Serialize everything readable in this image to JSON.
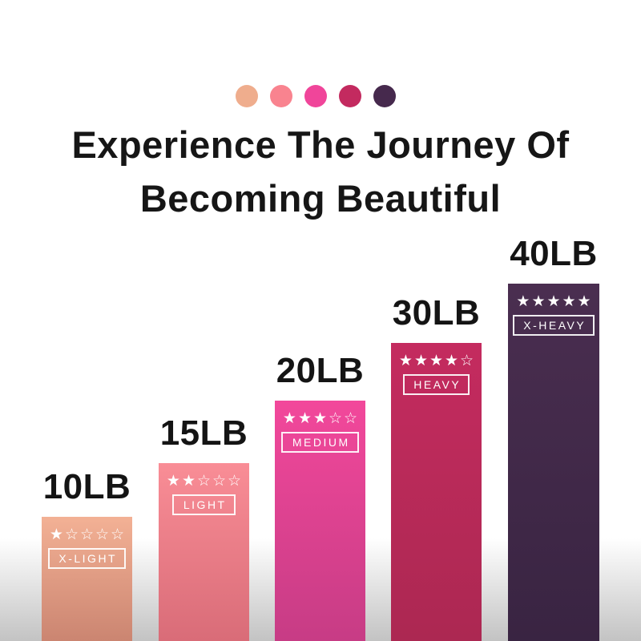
{
  "title": {
    "line1": "Experience The Journey Of",
    "line2": "Becoming Beautiful"
  },
  "chart_data": {
    "type": "bar",
    "title": "Experience The Journey Of Becoming Beautiful",
    "categories": [
      "10LB",
      "15LB",
      "20LB",
      "30LB",
      "40LB"
    ],
    "values": [
      10,
      15,
      20,
      30,
      40
    ],
    "unit": "LB",
    "xlabel": "",
    "ylabel": "",
    "legend": "none",
    "grid": false,
    "palette": [
      "#EFAD8D",
      "#F9838F",
      "#F0459A",
      "#C32A5F",
      "#46294D"
    ],
    "background_fade_color": "#c3c3c3",
    "title_color": "#161616",
    "bars": [
      {
        "weight_label": "10LB",
        "rating": 1,
        "stars": "★☆☆☆☆",
        "band_label": "X-LIGHT",
        "color_top": "#F3B195",
        "color_bottom": "#CB8571"
      },
      {
        "weight_label": "15LB",
        "rating": 2,
        "stars": "★★☆☆☆",
        "band_label": "LIGHT",
        "color_top": "#F98D96",
        "color_bottom": "#D96C78"
      },
      {
        "weight_label": "20LB",
        "rating": 3,
        "stars": "★★★☆☆",
        "band_label": "MEDIUM",
        "color_top": "#F2489B",
        "color_bottom": "#C73C85"
      },
      {
        "weight_label": "30LB",
        "rating": 4,
        "stars": "★★★★☆",
        "band_label": "HEAVY",
        "color_top": "#C42B5F",
        "color_bottom": "#AC2852"
      },
      {
        "weight_label": "40LB",
        "rating": 5,
        "stars": "★★★★★",
        "band_label": "X-HEAVY",
        "color_top": "#4A2E50",
        "color_bottom": "#392442"
      }
    ]
  }
}
